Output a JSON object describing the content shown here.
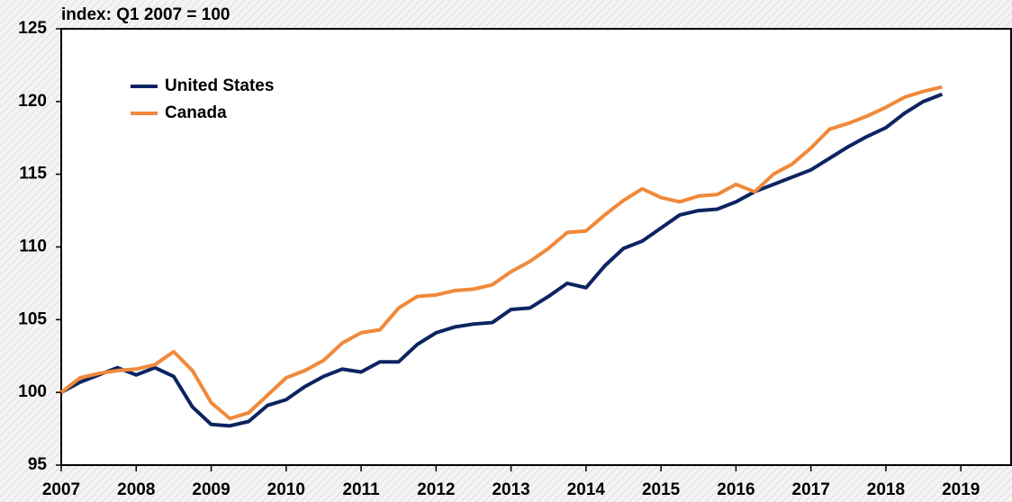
{
  "chart_data": {
    "type": "line",
    "title": "index: Q1 2007 = 100",
    "x": [
      2007,
      2007.25,
      2007.5,
      2007.75,
      2008,
      2008.25,
      2008.5,
      2008.75,
      2009,
      2009.25,
      2009.5,
      2009.75,
      2010,
      2010.25,
      2010.5,
      2010.75,
      2011,
      2011.25,
      2011.5,
      2011.75,
      2012,
      2012.25,
      2012.5,
      2012.75,
      2013,
      2013.25,
      2013.5,
      2013.75,
      2014,
      2014.25,
      2014.5,
      2014.75,
      2015,
      2015.25,
      2015.5,
      2015.75,
      2016,
      2016.25,
      2016.5,
      2016.75,
      2017,
      2017.25,
      2017.5,
      2017.75,
      2018,
      2018.25,
      2018.5,
      2018.75
    ],
    "series": [
      {
        "name": "United States",
        "color": "#0c2461",
        "values": [
          100,
          100.7,
          101.2,
          101.7,
          101.2,
          101.7,
          101.1,
          99.0,
          97.8,
          97.7,
          98.0,
          99.1,
          99.5,
          100.4,
          101.1,
          101.6,
          101.4,
          102.1,
          102.1,
          103.3,
          104.1,
          104.5,
          104.7,
          104.8,
          105.7,
          105.8,
          106.6,
          107.5,
          107.2,
          108.7,
          109.9,
          110.4,
          111.3,
          112.2,
          112.5,
          112.6,
          113.1,
          113.8,
          114.3,
          114.8,
          115.3,
          116.1,
          116.9,
          117.6,
          118.2,
          119.2,
          120.0,
          120.5
        ]
      },
      {
        "name": "Canada",
        "color": "#f0893a",
        "values": [
          100,
          101.0,
          101.3,
          101.5,
          101.6,
          101.9,
          102.8,
          101.5,
          99.3,
          98.2,
          98.6,
          99.8,
          101.0,
          101.5,
          102.2,
          103.4,
          104.1,
          104.3,
          105.8,
          106.6,
          106.7,
          107.0,
          107.1,
          107.4,
          108.3,
          109.0,
          109.9,
          111.0,
          111.1,
          112.2,
          113.2,
          114.0,
          113.4,
          113.1,
          113.5,
          113.6,
          114.3,
          113.8,
          115.0,
          115.7,
          116.8,
          118.1,
          118.5,
          119.0,
          119.6,
          120.3,
          120.7,
          121.0
        ]
      }
    ],
    "xlim": [
      2007,
      2019.67
    ],
    "xticks": [
      2007,
      2008,
      2009,
      2010,
      2011,
      2012,
      2013,
      2014,
      2015,
      2016,
      2017,
      2018,
      2019
    ],
    "ylim": [
      95,
      125
    ],
    "yticks": [
      95,
      100,
      105,
      110,
      115,
      120,
      125
    ],
    "legend": "upper left"
  }
}
